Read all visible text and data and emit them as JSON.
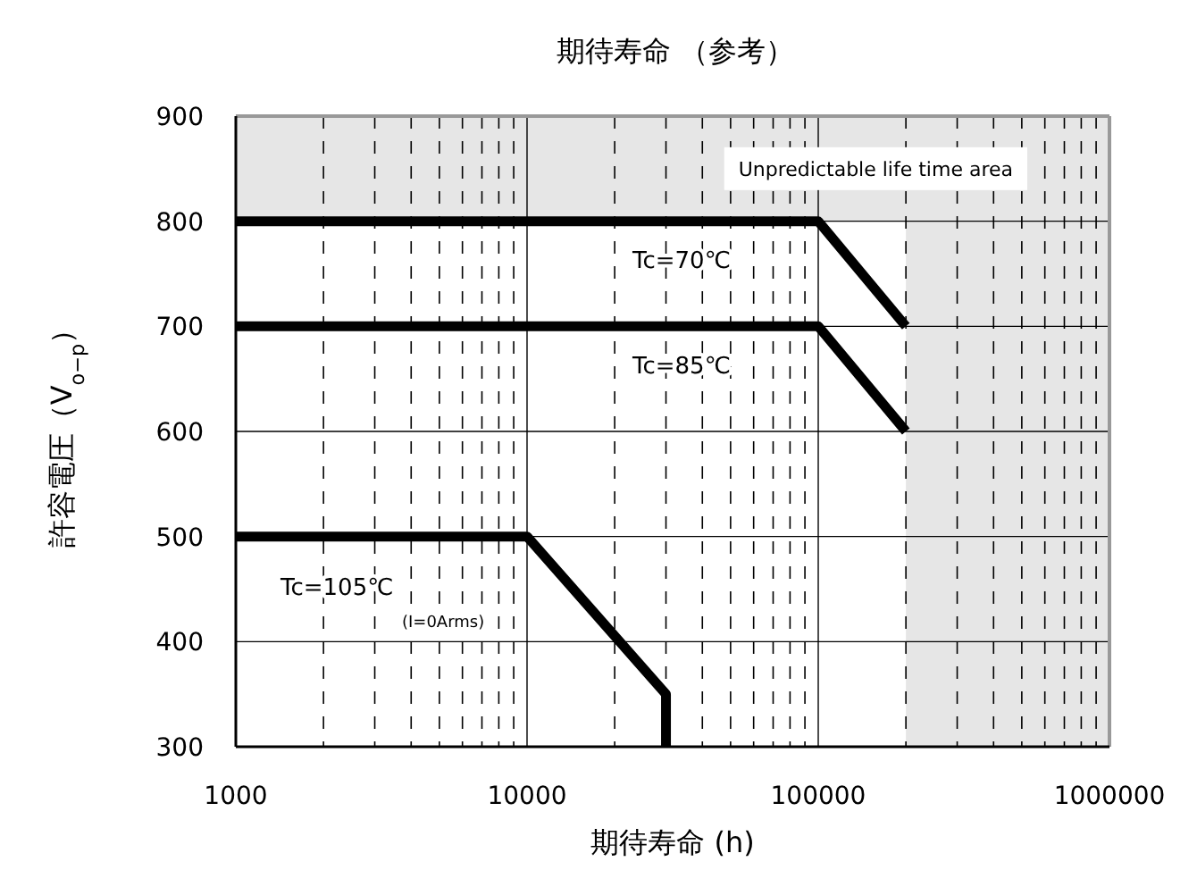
{
  "chart_data": {
    "type": "line",
    "title": "期待寿命 （参考）",
    "xlabel": "期待寿命 (h)",
    "ylabel": "許容電圧（V$_{o−p}$）",
    "log": "x",
    "xlim": [
      1000,
      1000000
    ],
    "xticks": [
      1000,
      10000,
      100000,
      1000000
    ],
    "ylim": [
      300,
      900
    ],
    "yticks": [
      300,
      400,
      500,
      600,
      700,
      800,
      900
    ],
    "grid": true,
    "marker": "none",
    "line_style": "solid",
    "series": [
      {
        "color": "#000000",
        "x": [
          1000,
          100000,
          200000
        ],
        "values": [
          800,
          800,
          700
        ]
      },
      {
        "color": "#000000",
        "x": [
          1000,
          100000,
          200000
        ],
        "values": [
          700,
          700,
          600
        ]
      },
      {
        "color": "#000000",
        "x": [
          1000,
          10000,
          30000,
          30000
        ],
        "values": [
          500,
          500,
          350,
          300
        ]
      }
    ],
    "bands": [
      {
        "axis": "y",
        "from": 800,
        "to": 900,
        "color": "#e6e6e6",
        "label": "Unpredictable life time area"
      },
      {
        "axis": "x",
        "from": 200000,
        "to": 1000000,
        "color": "#e6e6e6"
      }
    ],
    "annotations": [
      "Tc=70℃",
      "Tc=85℃",
      "Tc=105℃",
      "(I=0Arms)"
    ]
  }
}
